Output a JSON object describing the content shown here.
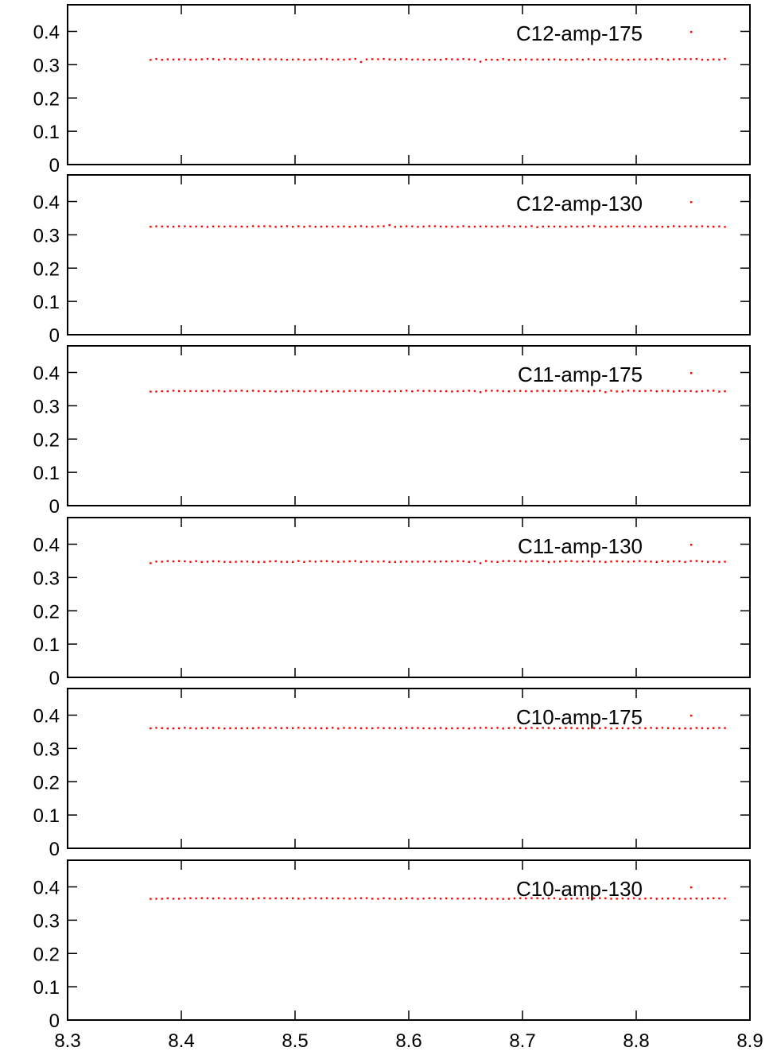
{
  "chart_data": [
    {
      "type": "scatter",
      "series": [
        {
          "name": "C12-amp-175",
          "color": "#ff0000"
        }
      ],
      "x_start": 8.373,
      "x_end": 8.88,
      "x_step": 0.005,
      "y_base": 0.316,
      "y_noise": 0.0015,
      "dips": [
        [
          8.558,
          0.308
        ],
        [
          8.59,
          0.311
        ],
        [
          8.663,
          0.309
        ],
        [
          8.672,
          0.319
        ]
      ],
      "xlim": [
        8.3,
        8.9
      ],
      "ylim": [
        0,
        0.48
      ],
      "yticks": [
        "0",
        "0.1",
        "0.2",
        "0.3",
        "0.4"
      ],
      "xticks": [],
      "legend": "top-right"
    },
    {
      "type": "scatter",
      "series": [
        {
          "name": "C12-amp-130",
          "color": "#ff0000"
        }
      ],
      "x_start": 8.373,
      "x_end": 8.88,
      "x_step": 0.005,
      "y_base": 0.325,
      "y_noise": 0.0012,
      "dips": [
        [
          8.583,
          0.329
        ],
        [
          8.713,
          0.323
        ]
      ],
      "xlim": [
        8.3,
        8.9
      ],
      "ylim": [
        0,
        0.48
      ],
      "yticks": [
        "0",
        "0.1",
        "0.2",
        "0.3",
        "0.4"
      ],
      "xticks": [],
      "legend": "top-right"
    },
    {
      "type": "scatter",
      "series": [
        {
          "name": "C11-amp-175",
          "color": "#ff0000"
        }
      ],
      "x_start": 8.373,
      "x_end": 8.88,
      "x_step": 0.005,
      "y_base": 0.344,
      "y_noise": 0.0015,
      "dips": [
        [
          8.663,
          0.341
        ],
        [
          8.773,
          0.341
        ]
      ],
      "xlim": [
        8.3,
        8.9
      ],
      "ylim": [
        0,
        0.48
      ],
      "yticks": [
        "0",
        "0.1",
        "0.2",
        "0.3",
        "0.4"
      ],
      "xticks": [],
      "legend": "top-right"
    },
    {
      "type": "scatter",
      "series": [
        {
          "name": "C11-amp-130",
          "color": "#ff0000"
        }
      ],
      "x_start": 8.373,
      "x_end": 8.88,
      "x_step": 0.005,
      "y_base": 0.348,
      "y_noise": 0.0015,
      "dips": [
        [
          8.373,
          0.343
        ],
        [
          8.663,
          0.343
        ]
      ],
      "xlim": [
        8.3,
        8.9
      ],
      "ylim": [
        0,
        0.48
      ],
      "yticks": [
        "0",
        "0.1",
        "0.2",
        "0.3",
        "0.4"
      ],
      "xticks": [],
      "legend": "top-right"
    },
    {
      "type": "scatter",
      "series": [
        {
          "name": "C10-amp-175",
          "color": "#ff0000"
        }
      ],
      "x_start": 8.373,
      "x_end": 8.88,
      "x_step": 0.005,
      "y_base": 0.361,
      "y_noise": 0.0012,
      "dips": [
        [
          8.507,
          0.352
        ]
      ],
      "xlim": [
        8.3,
        8.9
      ],
      "ylim": [
        0,
        0.48
      ],
      "yticks": [
        "0",
        "0.1",
        "0.2",
        "0.3",
        "0.4"
      ],
      "xticks": [],
      "legend": "top-right"
    },
    {
      "type": "scatter",
      "series": [
        {
          "name": "C10-amp-130",
          "color": "#ff0000"
        }
      ],
      "x_start": 8.373,
      "x_end": 8.88,
      "x_step": 0.005,
      "y_base": 0.365,
      "y_noise": 0.0012,
      "dips": [],
      "xlim": [
        8.3,
        8.9
      ],
      "ylim": [
        0,
        0.48
      ],
      "yticks": [
        "0",
        "0.1",
        "0.2",
        "0.3",
        "0.4"
      ],
      "xticks": [
        "8.3",
        "8.4",
        "8.5",
        "8.6",
        "8.7",
        "8.8",
        "8.9"
      ],
      "legend": "top-right"
    }
  ]
}
